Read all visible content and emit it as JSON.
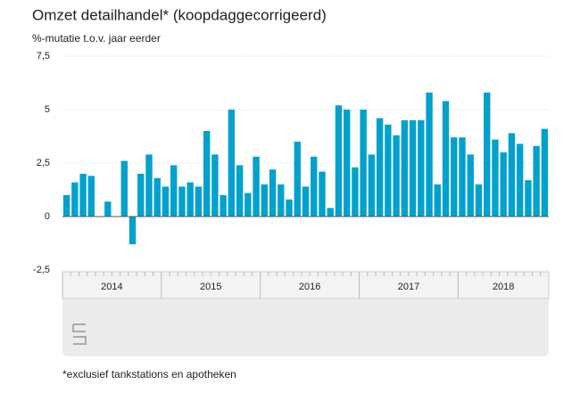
{
  "chart_data": {
    "type": "bar",
    "title": "Omzet detailhandel* (koopdaggecorrigeerd)",
    "subtitle": "%-mutatie t.o.v. jaar eerder",
    "footnote": "*exclusief tankstations en apotheken",
    "categories": [
      null,
      null,
      null,
      null,
      null,
      null,
      null,
      null,
      null,
      null,
      null,
      null,
      null,
      null,
      null,
      null,
      null,
      null,
      null,
      null,
      null,
      null,
      null,
      null,
      null,
      null,
      null,
      null,
      null,
      null,
      null,
      null,
      null,
      null,
      null,
      null,
      null,
      null,
      null,
      null,
      null,
      null,
      null,
      null,
      null,
      null,
      null,
      null,
      null,
      null,
      null,
      null,
      null,
      null,
      null,
      null,
      null,
      null,
      null
    ],
    "years": [
      "2014",
      "2015",
      "2016",
      "2017",
      "2018"
    ],
    "values": [
      1.0,
      1.6,
      2.0,
      1.9,
      0.0,
      0.7,
      0.0,
      2.6,
      -1.3,
      2.0,
      2.9,
      1.8,
      1.4,
      2.4,
      1.4,
      1.6,
      1.4,
      4.0,
      2.9,
      1.0,
      5.0,
      2.4,
      1.1,
      2.8,
      1.5,
      2.2,
      1.5,
      0.8,
      3.5,
      1.4,
      2.8,
      2.1,
      0.4,
      5.2,
      5.0,
      2.3,
      5.0,
      2.9,
      4.6,
      4.3,
      3.8,
      4.5,
      4.5,
      4.5,
      5.8,
      1.5,
      5.4,
      3.7,
      3.7,
      2.9,
      1.5,
      5.8,
      3.6,
      3.0,
      3.9,
      3.4,
      1.7,
      3.3,
      4.1
    ],
    "color": "#00a1cd",
    "ylim": [
      -2.5,
      7.5
    ],
    "yticks": [
      {
        "value": -2.5,
        "label": "-2,5"
      },
      0,
      {
        "value": 2.5,
        "label": "2,5"
      },
      5,
      {
        "value": 7.5,
        "label": "7,5"
      }
    ],
    "grid": true
  }
}
